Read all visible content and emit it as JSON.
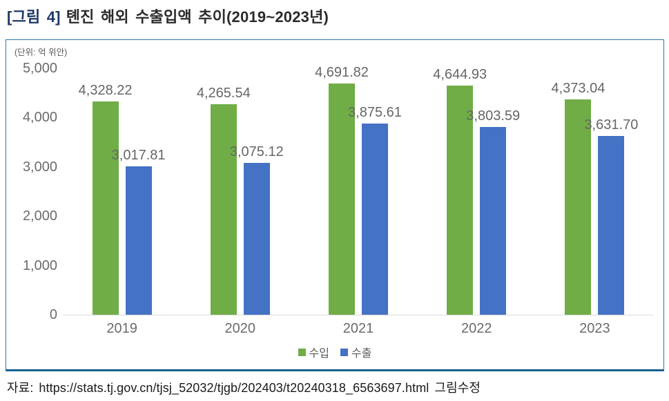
{
  "title": {
    "tag": "[그림 4]",
    "text": "톈진 해외 수출입액 추이(2019~2023년)"
  },
  "unit_label": "(단위: 억 위안)",
  "chart_data": {
    "type": "bar",
    "title": "톈진 해외 수출입액 추이(2019~2023년)",
    "categories": [
      "2019",
      "2020",
      "2021",
      "2022",
      "2023"
    ],
    "series": [
      {
        "name": "수입",
        "color": "#70AD47",
        "values": [
          4328.22,
          4265.54,
          4691.82,
          4644.93,
          4373.04
        ],
        "labels": [
          "4,328.22",
          "4,265.54",
          "4,691.82",
          "4,644.93",
          "4,373.04"
        ]
      },
      {
        "name": "수출",
        "color": "#4472C4",
        "values": [
          3017.81,
          3075.12,
          3875.61,
          3803.59,
          3631.7
        ],
        "labels": [
          "3,017.81",
          "3,075.12",
          "3,875.61",
          "3,803.59",
          "3,631.70"
        ]
      }
    ],
    "y_ticks": [
      {
        "label": "5,000",
        "value": 5000
      },
      {
        "label": "4,000",
        "value": 4000
      },
      {
        "label": "3,000",
        "value": 3000
      },
      {
        "label": "2,000",
        "value": 2000
      },
      {
        "label": "1,000",
        "value": 1000
      },
      {
        "label": "0",
        "value": 0
      }
    ],
    "ylim": [
      0,
      5000
    ],
    "grid": false,
    "legend_position": "bottom-center",
    "xlabel": "",
    "ylabel": "억 위안"
  },
  "legend": [
    {
      "label": "수입",
      "color": "#70AD47"
    },
    {
      "label": "수출",
      "color": "#4472C4"
    }
  ],
  "source": {
    "prefix": "자료:",
    "url": "https://stats.tj.gov.cn/tjsj_52032/tjgb/202403/t20240318_6563697.html",
    "suffix": "그림수정"
  },
  "colors": {
    "import_green": "#70AD47",
    "export_blue": "#4472C4",
    "box_border": "#2878A8",
    "box_border_bottom": "#17618F",
    "axis_line": "#D9D9D9",
    "label_gray": "#666666",
    "title_tag_navy": "#1F3864"
  }
}
